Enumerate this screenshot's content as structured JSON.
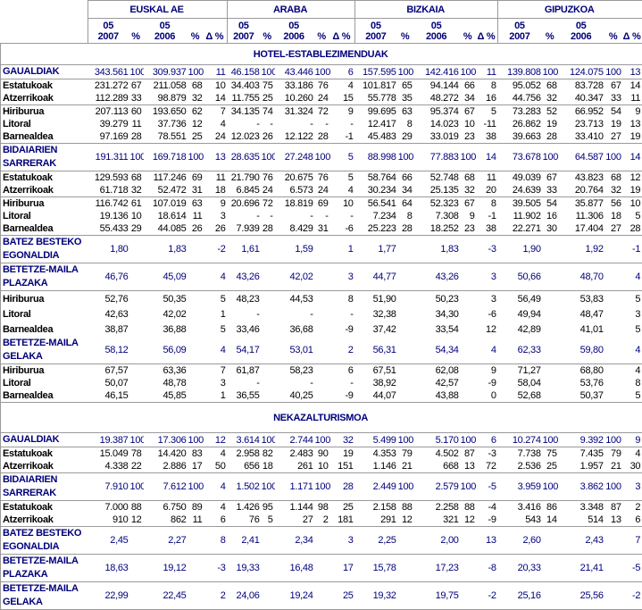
{
  "header": {
    "regions": [
      "EUSKAL AE",
      "ARABA",
      "BIZKAIA",
      "GIPUZKOA"
    ],
    "subcols": [
      [
        "05",
        "2007"
      ],
      [
        "%"
      ],
      [
        "05",
        "2006"
      ],
      [
        "%"
      ],
      [
        "Δ %"
      ]
    ]
  },
  "colors": {
    "text_blue": "#00007a",
    "border": "#9a9a9a"
  },
  "sections": [
    {
      "title": "HOTEL-ESTABLEZIMENDUAK",
      "groups": [
        {
          "rows": [
            {
              "label": [
                "GAUALDIAK"
              ],
              "total": true,
              "cells": [
                "343.561",
                "100",
                "309.937",
                "100",
                "11",
                "46.158",
                "100",
                "43.446",
                "100",
                "6",
                "157.595",
                "100",
                "142.416",
                "100",
                "11",
                "139.808",
                "100",
                "124.075",
                "100",
                "13"
              ]
            }
          ]
        },
        {
          "rows": [
            {
              "label": [
                "Estatukoak"
              ],
              "cells": [
                "231.272",
                "67",
                "211.058",
                "68",
                "10",
                "34.403",
                "75",
                "33.186",
                "76",
                "4",
                "101.817",
                "65",
                "94.144",
                "66",
                "8",
                "95.052",
                "68",
                "83.728",
                "67",
                "14"
              ]
            },
            {
              "label": [
                "Atzerrikoak"
              ],
              "cells": [
                "112.289",
                "33",
                "98.879",
                "32",
                "14",
                "11.755",
                "25",
                "10.260",
                "24",
                "15",
                "55.778",
                "35",
                "48.272",
                "34",
                "16",
                "44.756",
                "32",
                "40.347",
                "33",
                "11"
              ]
            }
          ]
        },
        {
          "rows": [
            {
              "label": [
                "Hiriburua"
              ],
              "cells": [
                "207.113",
                "60",
                "193.650",
                "62",
                "7",
                "34.135",
                "74",
                "31.324",
                "72",
                "9",
                "99.695",
                "63",
                "95.374",
                "67",
                "5",
                "73.283",
                "52",
                "66.952",
                "54",
                "9"
              ]
            },
            {
              "label": [
                "Litoral"
              ],
              "cells": [
                "39.279",
                "11",
                "37.736",
                "12",
                "4",
                "-",
                "-",
                "-",
                "-",
                "-",
                "12.417",
                "8",
                "14.023",
                "10",
                "-11",
                "26.862",
                "19",
                "23.713",
                "19",
                "13"
              ]
            },
            {
              "label": [
                "Barnealdea"
              ],
              "cells": [
                "97.169",
                "28",
                "78.551",
                "25",
                "24",
                "12.023",
                "26",
                "12.122",
                "28",
                "-1",
                "45.483",
                "29",
                "33.019",
                "23",
                "38",
                "39.663",
                "28",
                "33.410",
                "27",
                "19"
              ]
            }
          ]
        },
        {
          "rows": [
            {
              "label": [
                "BIDAIARIEN",
                "SARRERAK"
              ],
              "total": true,
              "cells": [
                "191.311",
                "100",
                "169.718",
                "100",
                "13",
                "28.635",
                "100",
                "27.248",
                "100",
                "5",
                "88.998",
                "100",
                "77.883",
                "100",
                "14",
                "73.678",
                "100",
                "64.587",
                "100",
                "14"
              ]
            }
          ]
        },
        {
          "rows": [
            {
              "label": [
                "Estatukoak"
              ],
              "cells": [
                "129.593",
                "68",
                "117.246",
                "69",
                "11",
                "21.790",
                "76",
                "20.675",
                "76",
                "5",
                "58.764",
                "66",
                "52.748",
                "68",
                "11",
                "49.039",
                "67",
                "43.823",
                "68",
                "12"
              ]
            },
            {
              "label": [
                "Atzerrikoak"
              ],
              "cells": [
                "61.718",
                "32",
                "52.472",
                "31",
                "18",
                "6.845",
                "24",
                "6.573",
                "24",
                "4",
                "30.234",
                "34",
                "25.135",
                "32",
                "20",
                "24.639",
                "33",
                "20.764",
                "32",
                "19"
              ]
            }
          ]
        },
        {
          "rows": [
            {
              "label": [
                "Hiriburua"
              ],
              "cells": [
                "116.742",
                "61",
                "107.019",
                "63",
                "9",
                "20.696",
                "72",
                "18.819",
                "69",
                "10",
                "56.541",
                "64",
                "52.323",
                "67",
                "8",
                "39.505",
                "54",
                "35.877",
                "56",
                "10"
              ]
            },
            {
              "label": [
                "Litoral"
              ],
              "cells": [
                "19.136",
                "10",
                "18.614",
                "11",
                "3",
                "-",
                "-",
                "-",
                "-",
                "-",
                "7.234",
                "8",
                "7.308",
                "9",
                "-1",
                "11.902",
                "16",
                "11.306",
                "18",
                "5"
              ]
            },
            {
              "label": [
                "Barnealdea"
              ],
              "cells": [
                "55.433",
                "29",
                "44.085",
                "26",
                "26",
                "7.939",
                "28",
                "8.429",
                "31",
                "-6",
                "25.223",
                "28",
                "18.252",
                "23",
                "38",
                "22.271",
                "30",
                "17.404",
                "27",
                "28"
              ]
            }
          ]
        },
        {
          "rows": [
            {
              "label": [
                "BATEZ BESTEKO",
                "EGONALDIA"
              ],
              "total": true,
              "cells": [
                "1,80",
                "",
                "1,83",
                "",
                "-2",
                "1,61",
                "",
                "1,59",
                "",
                "1",
                "1,77",
                "",
                "1,83",
                "",
                "-3",
                "1,90",
                "",
                "1,92",
                "",
                "-1"
              ]
            }
          ]
        },
        {
          "rows": [
            {
              "label": [
                "BETETZE-MAILA",
                "PLAZAKA"
              ],
              "total": true,
              "cells": [
                "46,76",
                "",
                "45,09",
                "",
                "4",
                "43,26",
                "",
                "42,02",
                "",
                "3",
                "44,77",
                "",
                "43,26",
                "",
                "3",
                "50,66",
                "",
                "48,70",
                "",
                "4"
              ]
            }
          ]
        },
        {
          "rows": [
            {
              "label": [
                "Hiriburua"
              ],
              "mid": true,
              "cells": [
                "52,76",
                "",
                "50,35",
                "",
                "5",
                "48,23",
                "",
                "44,53",
                "",
                "8",
                "51,90",
                "",
                "50,23",
                "",
                "3",
                "56,49",
                "",
                "53,83",
                "",
                "5"
              ]
            },
            {
              "label": [
                "Litoral"
              ],
              "mid": true,
              "cells": [
                "42,63",
                "",
                "42,02",
                "",
                "1",
                "-",
                "",
                "-",
                "",
                "-",
                "32,38",
                "",
                "34,30",
                "",
                "-6",
                "49,94",
                "",
                "48,47",
                "",
                "3"
              ]
            },
            {
              "label": [
                "Barnealdea"
              ],
              "mid": true,
              "cells": [
                "38,87",
                "",
                "36,88",
                "",
                "5",
                "33,46",
                "",
                "36,68",
                "",
                "-9",
                "37,42",
                "",
                "33,54",
                "",
                "12",
                "42,89",
                "",
                "41,01",
                "",
                "5"
              ]
            },
            {
              "label": [
                "BETETZE-MAILA",
                "GELAKA"
              ],
              "total": true,
              "cells": [
                "58,12",
                "",
                "56,09",
                "",
                "4",
                "54,17",
                "",
                "53,01",
                "",
                "2",
                "56,31",
                "",
                "54,34",
                "",
                "4",
                "62,33",
                "",
                "59,80",
                "",
                "4"
              ]
            }
          ]
        },
        {
          "rows": [
            {
              "label": [
                "Hiriburua"
              ],
              "cells": [
                "67,57",
                "",
                "63,36",
                "",
                "7",
                "61,87",
                "",
                "58,23",
                "",
                "6",
                "67,51",
                "",
                "62,08",
                "",
                "9",
                "71,27",
                "",
                "68,80",
                "",
                "4"
              ]
            },
            {
              "label": [
                "Litoral"
              ],
              "cells": [
                "50,07",
                "",
                "48,78",
                "",
                "3",
                "-",
                "",
                "-",
                "",
                "-",
                "38,92",
                "",
                "42,57",
                "",
                "-9",
                "58,04",
                "",
                "53,76",
                "",
                "8"
              ]
            },
            {
              "label": [
                "Barnealdea"
              ],
              "cells": [
                "46,15",
                "",
                "45,85",
                "",
                "1",
                "36,55",
                "",
                "40,25",
                "",
                "-9",
                "44,07",
                "",
                "43,88",
                "",
                "0",
                "52,68",
                "",
                "50,37",
                "",
                "5"
              ]
            }
          ]
        }
      ]
    },
    {
      "title": "NEKAZALTURISMOA",
      "groups": [
        {
          "rows": [
            {
              "label": [
                "GAUALDIAK"
              ],
              "total": true,
              "cells": [
                "19.387",
                "100",
                "17.306",
                "100",
                "12",
                "3.614",
                "100",
                "2.744",
                "100",
                "32",
                "5.499",
                "100",
                "5.170",
                "100",
                "6",
                "10.274",
                "100",
                "9.392",
                "100",
                "9"
              ]
            }
          ]
        },
        {
          "rows": [
            {
              "label": [
                "Estatukoak"
              ],
              "cells": [
                "15.049",
                "78",
                "14.420",
                "83",
                "4",
                "2.958",
                "82",
                "2.483",
                "90",
                "19",
                "4.353",
                "79",
                "4.502",
                "87",
                "-3",
                "7.738",
                "75",
                "7.435",
                "79",
                "4"
              ]
            },
            {
              "label": [
                "Atzerrikoak"
              ],
              "cells": [
                "4.338",
                "22",
                "2.886",
                "17",
                "50",
                "656",
                "18",
                "261",
                "10",
                "151",
                "1.146",
                "21",
                "668",
                "13",
                "72",
                "2.536",
                "25",
                "1.957",
                "21",
                "30"
              ]
            }
          ]
        },
        {
          "rows": [
            {
              "label": [
                "BIDAIARIEN",
                "SARRERAK"
              ],
              "total": true,
              "cells": [
                "7.910",
                "100",
                "7.612",
                "100",
                "4",
                "1.502",
                "100",
                "1.171",
                "100",
                "28",
                "2.449",
                "100",
                "2.579",
                "100",
                "-5",
                "3.959",
                "100",
                "3.862",
                "100",
                "3"
              ]
            }
          ]
        },
        {
          "rows": [
            {
              "label": [
                "Estatukoak"
              ],
              "cells": [
                "7.000",
                "88",
                "6.750",
                "89",
                "4",
                "1.426",
                "95",
                "1.144",
                "98",
                "25",
                "2.158",
                "88",
                "2.258",
                "88",
                "-4",
                "3.416",
                "86",
                "3.348",
                "87",
                "2"
              ]
            },
            {
              "label": [
                "Atzerrikoak"
              ],
              "cells": [
                "910",
                "12",
                "862",
                "11",
                "6",
                "76",
                "5",
                "27",
                "2",
                "181",
                "291",
                "12",
                "321",
                "12",
                "-9",
                "543",
                "14",
                "514",
                "13",
                "6"
              ]
            }
          ]
        },
        {
          "rows": [
            {
              "label": [
                "BATEZ BESTEKO",
                "EGONALDIA"
              ],
              "total": true,
              "cells": [
                "2,45",
                "",
                "2,27",
                "",
                "8",
                "2,41",
                "",
                "2,34",
                "",
                "3",
                "2,25",
                "",
                "2,00",
                "",
                "13",
                "2,60",
                "",
                "2,43",
                "",
                "7"
              ]
            }
          ]
        },
        {
          "rows": [
            {
              "label": [
                "BETETZE-MAILA",
                "PLAZAKA"
              ],
              "total": true,
              "cells": [
                "18,63",
                "",
                "19,12",
                "",
                "-3",
                "19,33",
                "",
                "16,48",
                "",
                "17",
                "15,78",
                "",
                "17,23",
                "",
                "-8",
                "20,33",
                "",
                "21,41",
                "",
                "-5"
              ]
            }
          ]
        },
        {
          "rows": [
            {
              "label": [
                "BETETZE-MAILA",
                "GELAKA"
              ],
              "total": true,
              "cells": [
                "22,99",
                "",
                "22,45",
                "",
                "2",
                "24,06",
                "",
                "19,24",
                "",
                "25",
                "19,32",
                "",
                "19,75",
                "",
                "-2",
                "25,16",
                "",
                "25,56",
                "",
                "-2"
              ]
            }
          ]
        }
      ]
    }
  ]
}
